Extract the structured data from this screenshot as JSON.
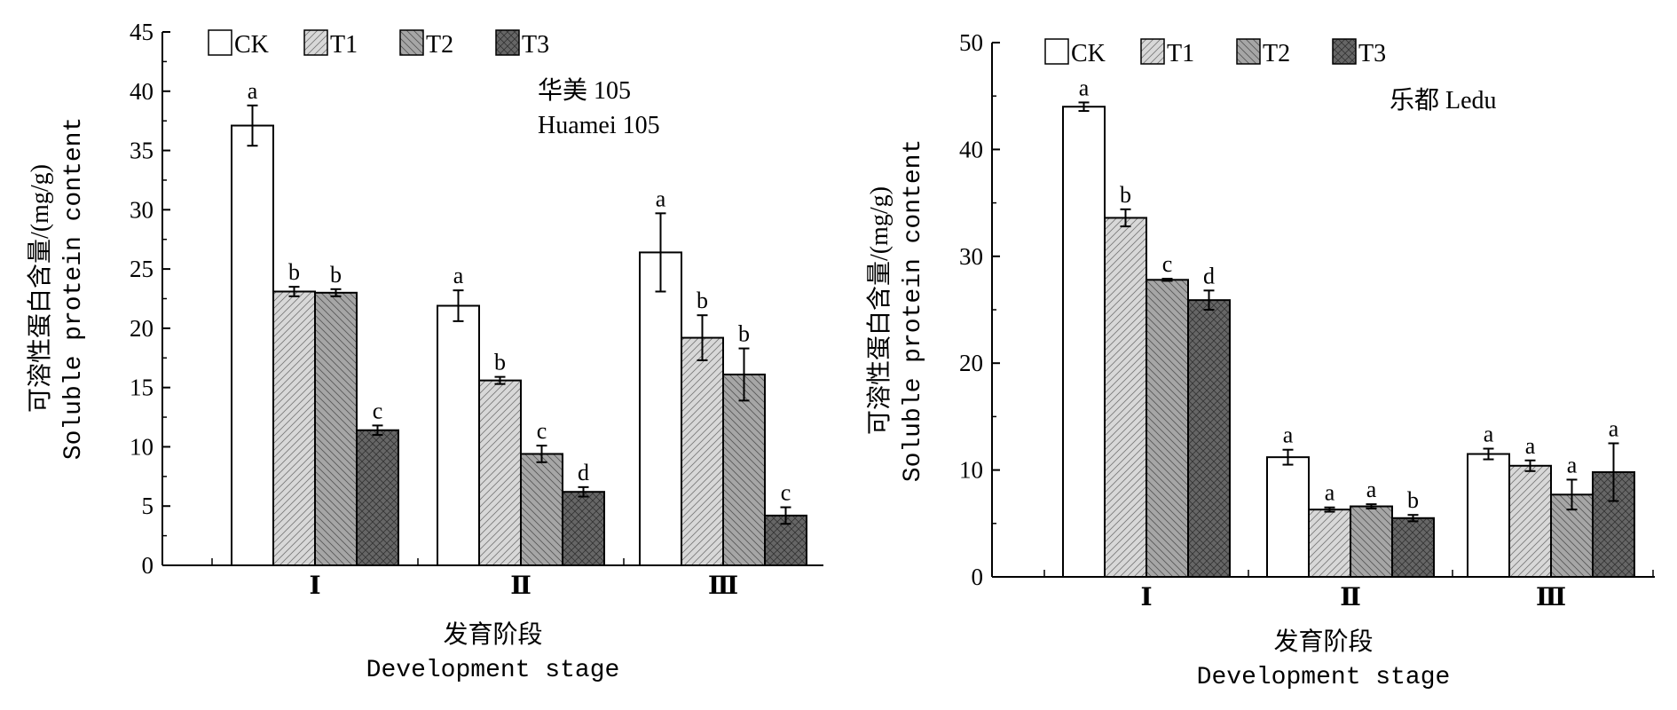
{
  "chart_data": [
    {
      "type": "bar",
      "title": "华美 105",
      "subtitle": "Huamei 105",
      "xlabel_cn": "发育阶段",
      "xlabel": "Development stage",
      "ylabel_cn": "可溶性蛋白含量/(mg/g)",
      "ylabel": "Soluble protein content",
      "ylim": [
        0,
        45
      ],
      "yticks": [
        0,
        5,
        10,
        15,
        20,
        25,
        30,
        35,
        40,
        45
      ],
      "categories": [
        "Ⅰ",
        "Ⅱ",
        "Ⅲ"
      ],
      "legend": "top-left",
      "series": [
        {
          "name": "CK",
          "values": [
            37.1,
            21.9,
            26.4
          ],
          "errors": [
            1.7,
            1.3,
            3.3
          ],
          "letters": [
            "a",
            "a",
            "a"
          ],
          "color": "#ffffff"
        },
        {
          "name": "T1",
          "values": [
            23.1,
            15.6,
            19.2
          ],
          "errors": [
            0.4,
            0.3,
            1.9
          ],
          "letters": [
            "b",
            "b",
            "b"
          ],
          "color": "#d8d8d8"
        },
        {
          "name": "T2",
          "values": [
            23.0,
            9.4,
            16.1
          ],
          "errors": [
            0.3,
            0.7,
            2.2
          ],
          "letters": [
            "b",
            "c",
            "b"
          ],
          "color": "#a6a6a6"
        },
        {
          "name": "T3",
          "values": [
            11.4,
            6.2,
            4.2
          ],
          "errors": [
            0.4,
            0.4,
            0.7
          ],
          "letters": [
            "c",
            "d",
            "c"
          ],
          "color": "#666666"
        }
      ]
    },
    {
      "type": "bar",
      "title": "乐都 Ledu",
      "xlabel_cn": "发育阶段",
      "xlabel": "Development stage",
      "ylabel_cn": "可溶性蛋白含量/(mg/g)",
      "ylabel": "Soluble protein content",
      "ylim": [
        0,
        50
      ],
      "yticks": [
        0,
        10,
        20,
        30,
        40,
        50
      ],
      "categories": [
        "Ⅰ",
        "Ⅱ",
        "Ⅲ"
      ],
      "legend": "top-left",
      "series": [
        {
          "name": "CK",
          "values": [
            44.0,
            11.2,
            11.5
          ],
          "errors": [
            0.4,
            0.7,
            0.5
          ],
          "letters": [
            "a",
            "a",
            "a"
          ],
          "color": "#ffffff"
        },
        {
          "name": "T1",
          "values": [
            33.6,
            6.3,
            10.4
          ],
          "errors": [
            0.8,
            0.2,
            0.5
          ],
          "letters": [
            "b",
            "a",
            "a"
          ],
          "color": "#d8d8d8"
        },
        {
          "name": "T2",
          "values": [
            27.8,
            6.6,
            7.7
          ],
          "errors": [
            0.1,
            0.2,
            1.4
          ],
          "letters": [
            "c",
            "a",
            "a"
          ],
          "color": "#a6a6a6"
        },
        {
          "name": "T3",
          "values": [
            25.9,
            5.5,
            9.8
          ],
          "errors": [
            0.9,
            0.3,
            2.7
          ],
          "letters": [
            "d",
            "b",
            "a"
          ],
          "color": "#666666"
        }
      ]
    }
  ]
}
